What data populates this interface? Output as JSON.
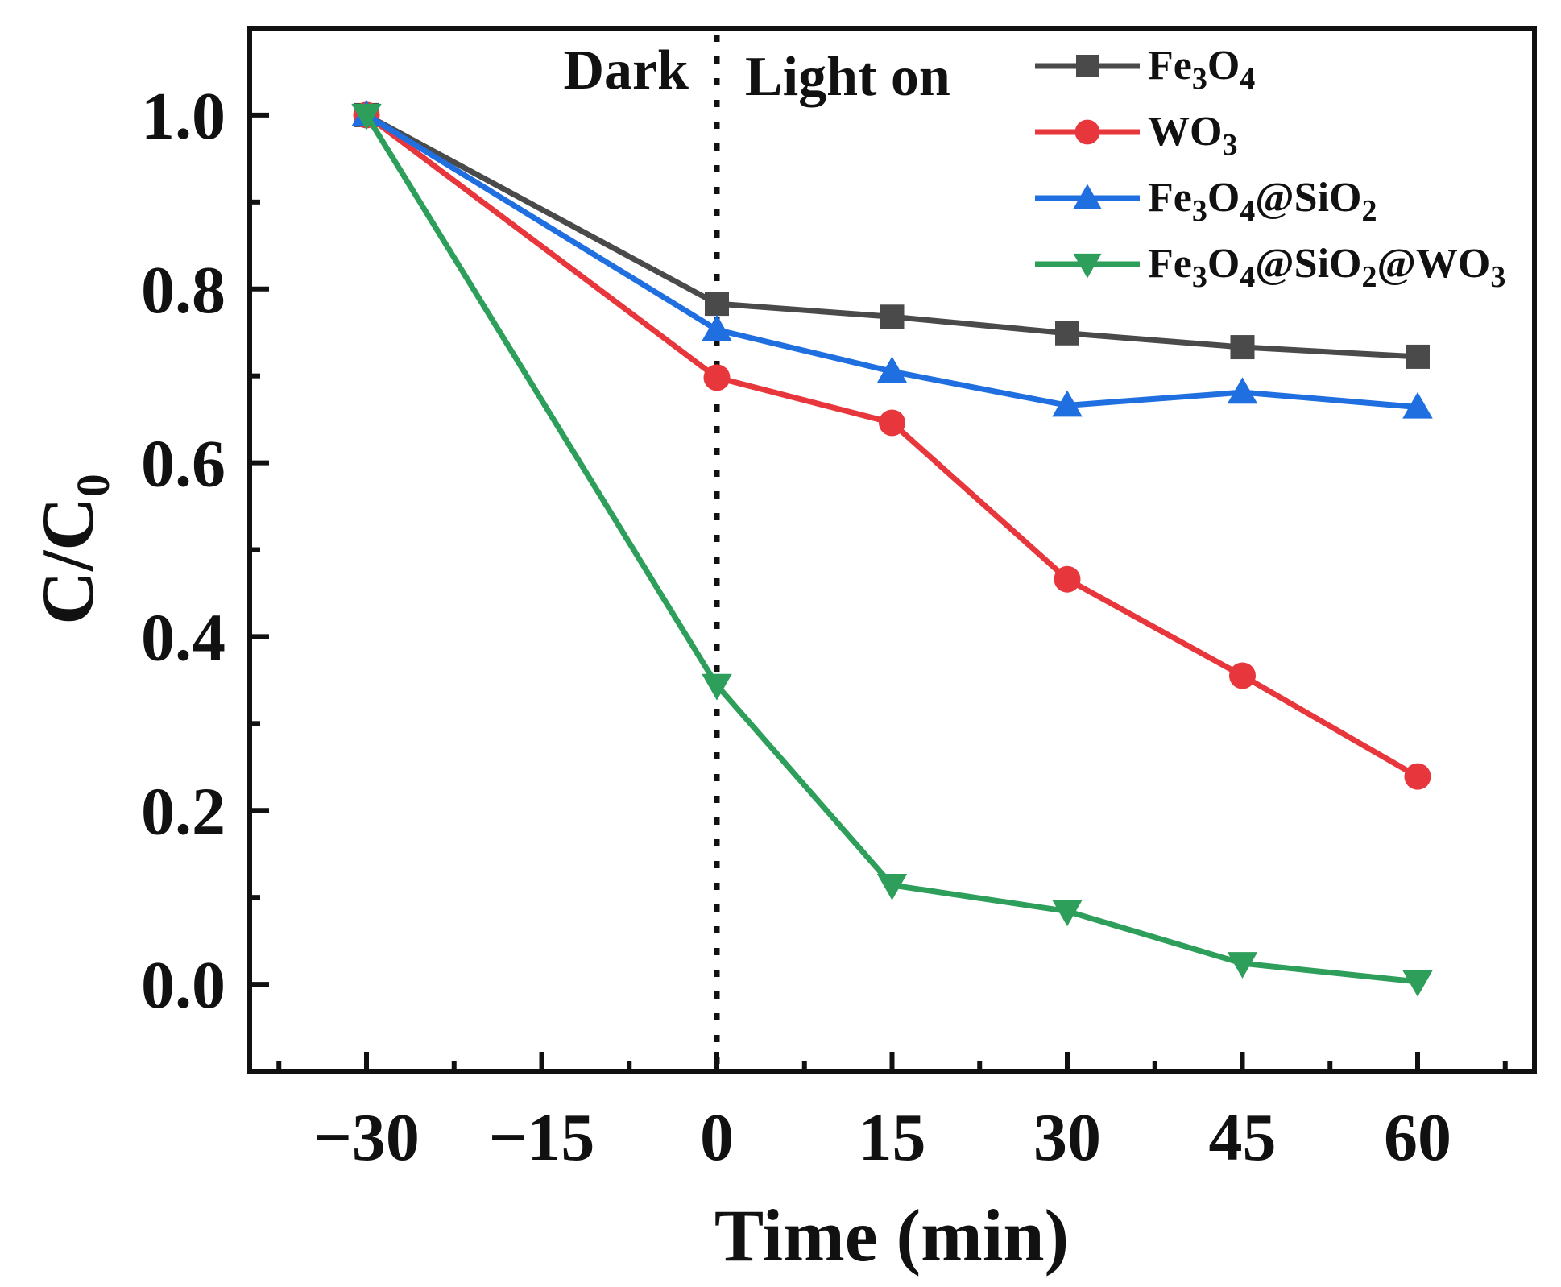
{
  "chart_data": {
    "type": "line",
    "title": "",
    "xlabel": "Time (min)",
    "ylabel": "C/C",
    "ylabel_sub": "0",
    "x": [
      -30,
      0,
      15,
      30,
      45,
      60
    ],
    "xlim": [
      -40,
      70
    ],
    "ylim": [
      -0.1,
      1.1
    ],
    "xticks": [
      -30,
      -15,
      0,
      15,
      30,
      45,
      60
    ],
    "xtick_labels": [
      "−30",
      "−15",
      "0",
      "15",
      "30",
      "45",
      "60"
    ],
    "yticks": [
      0.0,
      0.2,
      0.4,
      0.6,
      0.8,
      1.0
    ],
    "ytick_labels": [
      "0.0",
      "0.2",
      "0.4",
      "0.6",
      "0.8",
      "1.0"
    ],
    "grid": false,
    "legend_position": "top-right",
    "divider": {
      "x": 0,
      "style": "dotted"
    },
    "annotations": {
      "left": "Dark",
      "right": "Light on"
    },
    "series": [
      {
        "name": "Fe3O4",
        "label_parts": [
          [
            "Fe",
            false
          ],
          [
            "3",
            true
          ],
          [
            "O",
            false
          ],
          [
            "4",
            true
          ]
        ],
        "color": "#4a4a4a",
        "marker": "square",
        "values": [
          1.0,
          0.783,
          0.768,
          0.749,
          0.733,
          0.722
        ]
      },
      {
        "name": "WO3",
        "label_parts": [
          [
            "WO",
            false
          ],
          [
            "3",
            true
          ]
        ],
        "color": "#e8373c",
        "marker": "circle",
        "values": [
          1.0,
          0.698,
          0.646,
          0.466,
          0.355,
          0.239
        ]
      },
      {
        "name": "Fe3O4@SiO2",
        "label_parts": [
          [
            "Fe",
            false
          ],
          [
            "3",
            true
          ],
          [
            "O",
            false
          ],
          [
            "4",
            true
          ],
          [
            "@SiO",
            false
          ],
          [
            "2",
            true
          ]
        ],
        "color": "#1f6fe0",
        "marker": "triangle-up",
        "values": [
          1.0,
          0.753,
          0.705,
          0.666,
          0.681,
          0.664
        ]
      },
      {
        "name": "Fe3O4@SiO2@WO3",
        "label_parts": [
          [
            "Fe",
            false
          ],
          [
            "3",
            true
          ],
          [
            "O",
            false
          ],
          [
            "4",
            true
          ],
          [
            "@SiO",
            false
          ],
          [
            "2",
            true
          ],
          [
            "@WO",
            false
          ],
          [
            "3",
            true
          ]
        ],
        "color": "#2e9e5b",
        "marker": "triangle-down",
        "values": [
          1.0,
          0.344,
          0.114,
          0.084,
          0.024,
          0.003
        ]
      }
    ]
  }
}
